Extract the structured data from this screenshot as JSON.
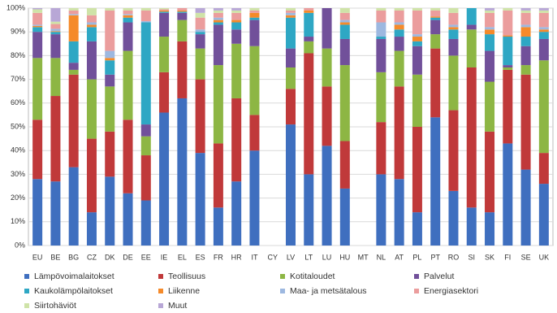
{
  "chart_data": {
    "type": "stacked_bar",
    "categories": [
      "EU",
      "BE",
      "BG",
      "CZ",
      "DK",
      "DE",
      "EE",
      "IE",
      "EL",
      "ES",
      "FR",
      "HR",
      "IT",
      "CY",
      "LV",
      "LT",
      "LU",
      "HU",
      "MT",
      "NL",
      "AT",
      "PL",
      "PT",
      "RO",
      "SI",
      "SK",
      "FI",
      "SE",
      "UK"
    ],
    "series": [
      {
        "name": "Lämpövoimalaitokset",
        "color": "#3f6fbf",
        "values": [
          28,
          27,
          33,
          14,
          29,
          22,
          19,
          56,
          62,
          39,
          16,
          27,
          40,
          null,
          51,
          30,
          42,
          24,
          null,
          30,
          28,
          14,
          54,
          23,
          16,
          14,
          43,
          32,
          26
        ]
      },
      {
        "name": "Teollisuus",
        "color": "#c0393a",
        "values": [
          25,
          36,
          39,
          31,
          19,
          31,
          19,
          17,
          24,
          31,
          27,
          35,
          15,
          null,
          15,
          51,
          25,
          20,
          null,
          22,
          39,
          36,
          29,
          34,
          59,
          34,
          31,
          40,
          13
        ]
      },
      {
        "name": "Kotitaloudet",
        "color": "#8db644",
        "values": [
          26,
          16,
          2,
          25,
          19,
          29,
          8,
          15,
          9,
          13,
          33,
          23,
          29,
          null,
          9,
          5,
          16,
          32,
          null,
          21,
          15,
          22,
          6,
          23,
          16,
          21,
          1,
          4,
          39
        ]
      },
      {
        "name": "Palvelut",
        "color": "#71509a",
        "values": [
          11,
          10,
          3,
          16,
          5,
          12,
          5,
          10,
          3,
          6,
          17,
          6,
          11,
          null,
          8,
          2,
          17,
          11,
          null,
          14,
          6,
          12,
          6,
          7,
          2,
          13,
          1,
          8,
          9
        ]
      },
      {
        "name": "Kaukolämpölaitokset",
        "color": "#2ea7c4",
        "values": [
          2,
          1,
          9,
          6,
          6,
          2,
          43,
          0.5,
          0.5,
          1,
          1,
          3,
          1,
          null,
          13,
          10,
          0,
          6,
          null,
          1,
          3,
          2,
          1,
          4,
          7,
          7,
          12,
          4,
          3
        ]
      },
      {
        "name": "Liikenne",
        "color": "#f58a2a",
        "values": [
          0.5,
          0.3,
          11,
          1,
          1,
          1,
          0,
          0.5,
          0.5,
          0,
          1,
          1,
          2,
          null,
          1,
          1,
          0,
          1,
          null,
          0,
          2,
          2,
          0.5,
          1,
          0,
          2,
          0.5,
          4,
          1
        ]
      },
      {
        "name": "Maa- ja metsätalous",
        "color": "#9db8e0",
        "values": [
          0.5,
          1,
          0.5,
          1,
          3,
          0.5,
          0.5,
          0,
          0,
          1,
          1,
          0,
          0,
          null,
          1,
          0,
          0,
          1,
          null,
          6,
          1,
          1,
          0,
          1,
          0,
          1,
          0,
          1,
          1
        ]
      },
      {
        "name": "Energiasektori",
        "color": "#eb9d9d",
        "values": [
          5,
          2,
          1.5,
          3,
          17,
          1.5,
          4.5,
          0.5,
          1,
          5,
          2,
          3,
          1,
          null,
          1,
          1,
          0,
          3,
          null,
          5,
          5,
          10,
          2.5,
          5,
          0,
          6,
          10.5,
          5,
          6
        ]
      },
      {
        "name": "Siirtohäviöt",
        "color": "#cfe3a8",
        "values": [
          1.5,
          1,
          1,
          3,
          1,
          1,
          1,
          0.5,
          0,
          2,
          1,
          1,
          1,
          null,
          1,
          0,
          0,
          2,
          null,
          1,
          1,
          1,
          1,
          2,
          0,
          1,
          1,
          1,
          1
        ]
      },
      {
        "name": "Muut",
        "color": "#b8a7d6",
        "values": [
          0.5,
          5.7,
          0,
          0,
          0,
          0,
          0,
          0,
          0,
          2,
          1,
          1,
          0,
          null,
          0,
          0,
          0,
          0,
          null,
          0,
          0,
          0,
          0,
          0,
          0,
          1,
          0,
          1,
          1
        ]
      }
    ],
    "ylim": [
      0,
      100
    ],
    "yticks": [
      {
        "value": 0,
        "label": "0%"
      },
      {
        "value": 10,
        "label": "10%"
      },
      {
        "value": 20,
        "label": "20%"
      },
      {
        "value": 30,
        "label": "30%"
      },
      {
        "value": 40,
        "label": "40%"
      },
      {
        "value": 50,
        "label": "50%"
      },
      {
        "value": 60,
        "label": "60%"
      },
      {
        "value": 70,
        "label": "70%"
      },
      {
        "value": 80,
        "label": "80%"
      },
      {
        "value": 90,
        "label": "90%"
      },
      {
        "value": 100,
        "label": "100%"
      }
    ],
    "grid": true,
    "legend": "bottom"
  }
}
